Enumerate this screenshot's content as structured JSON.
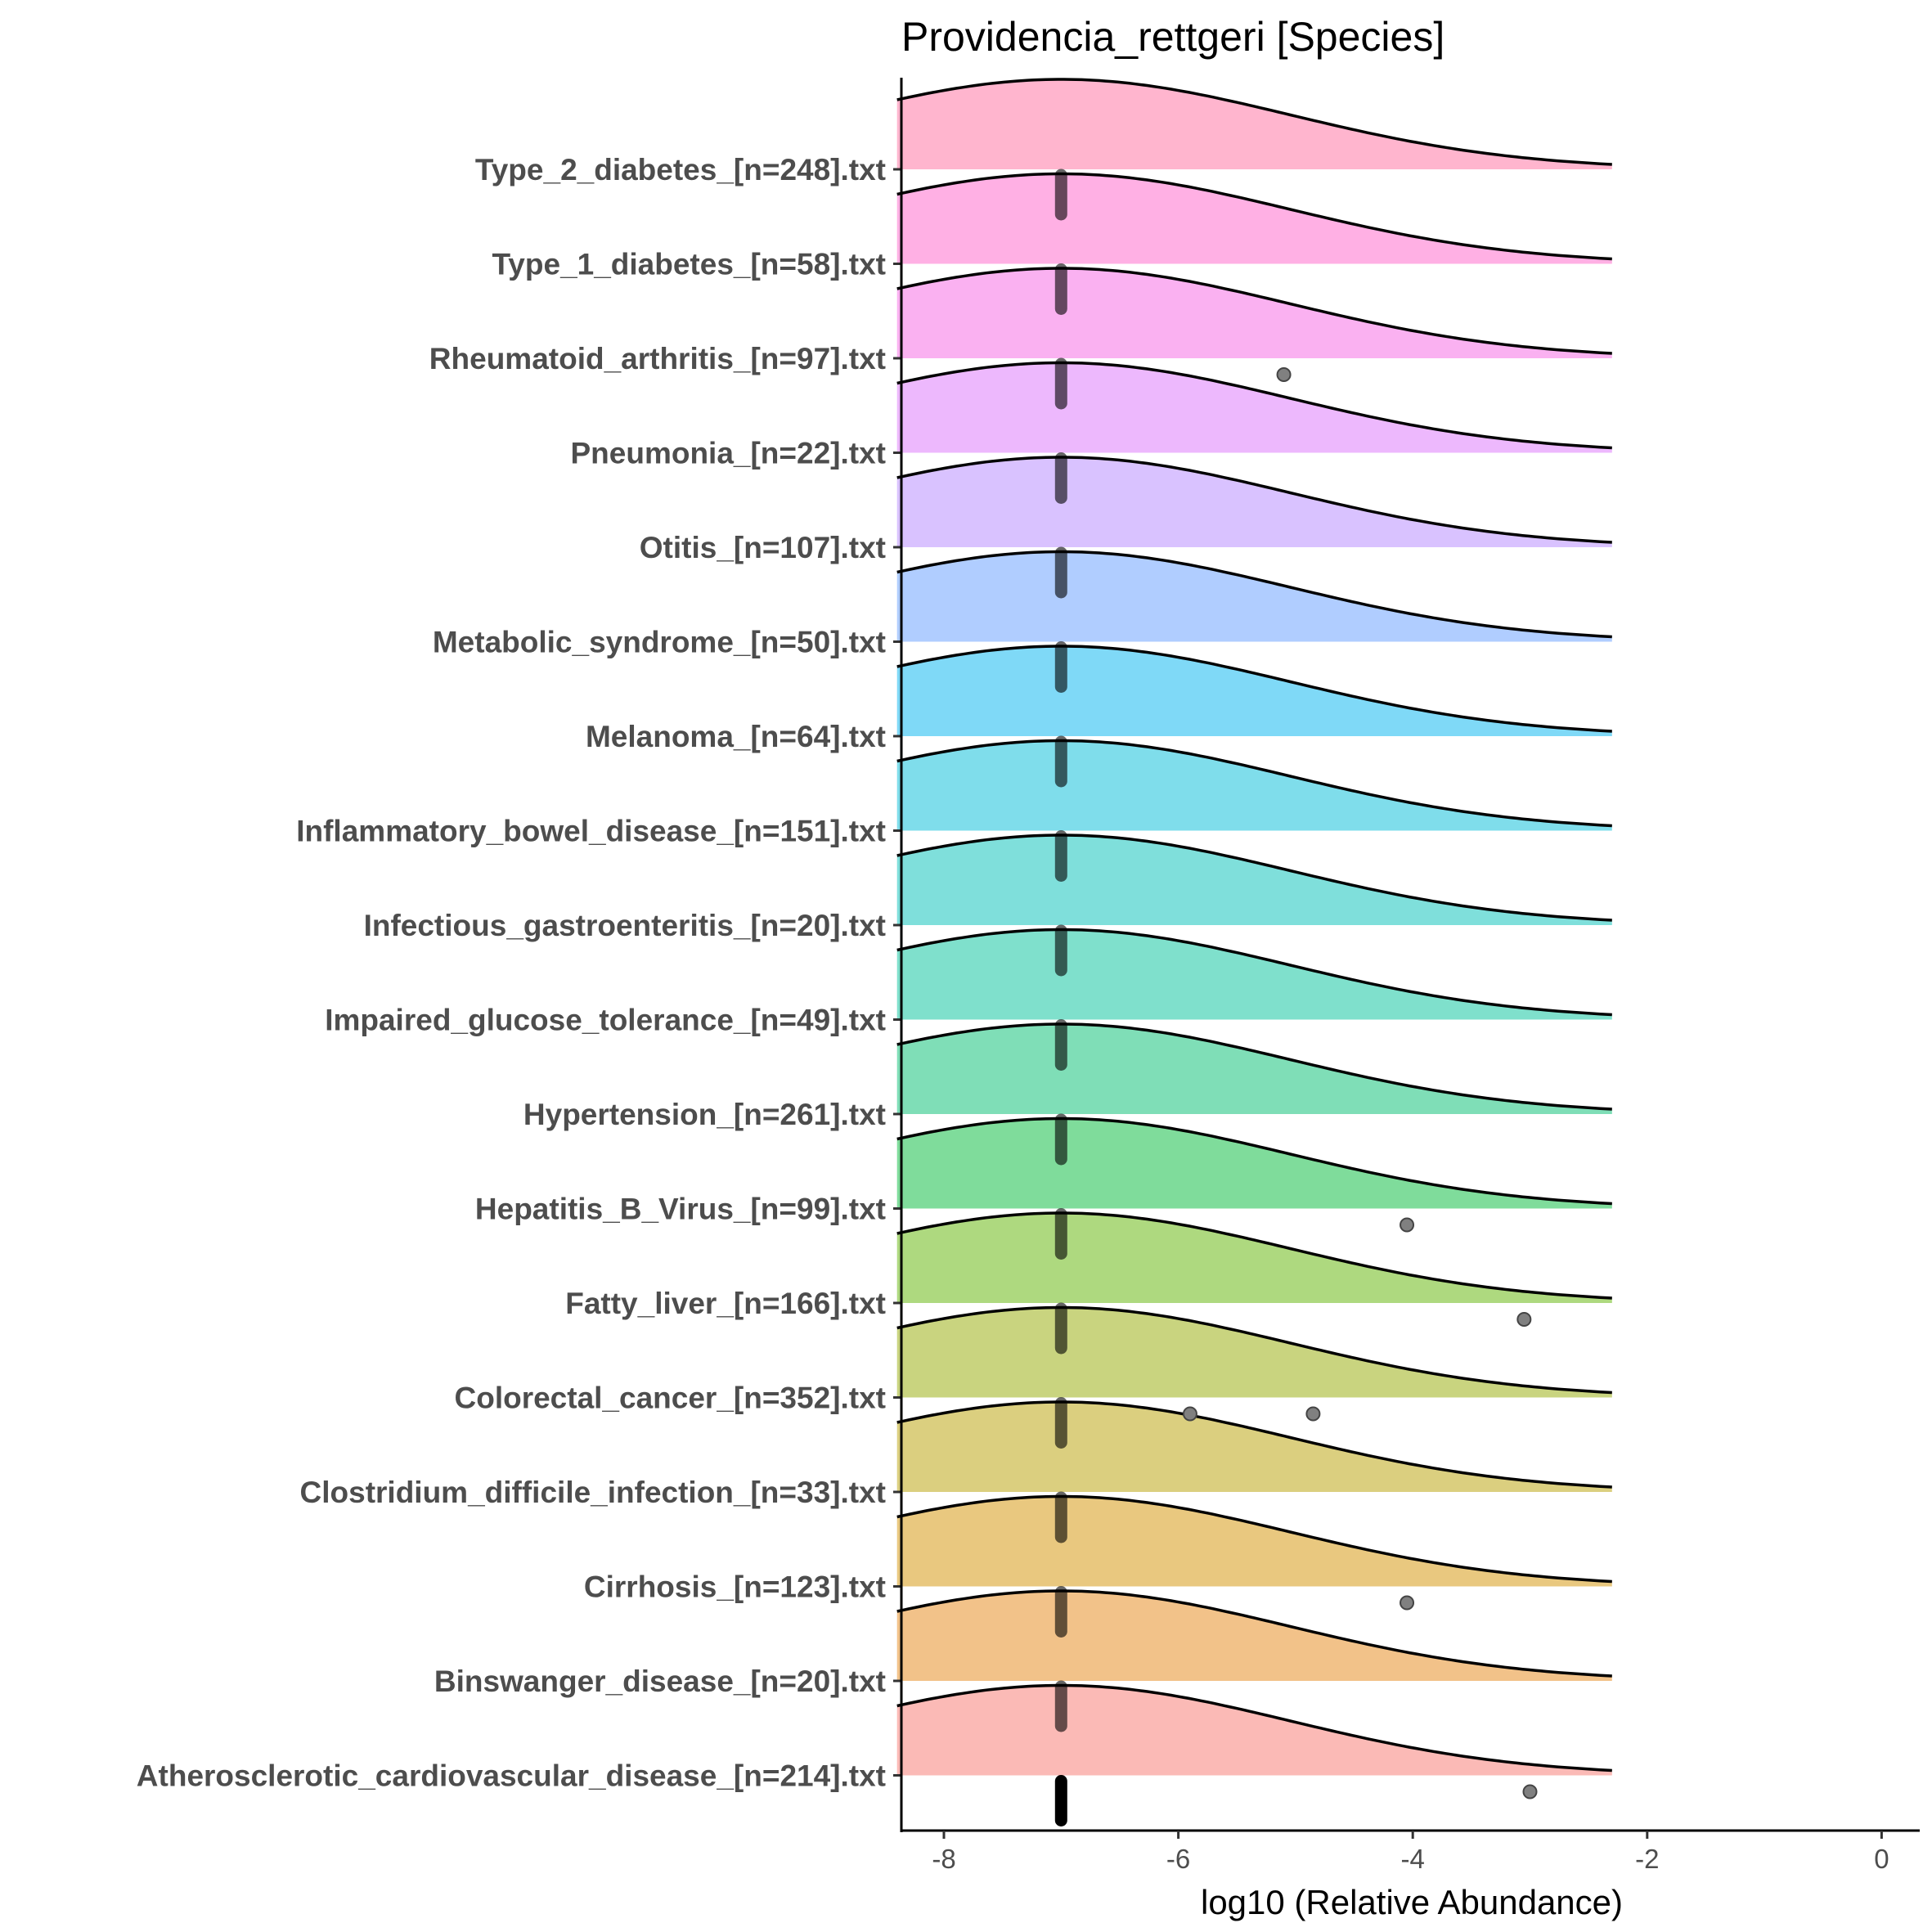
{
  "chart_data": {
    "type": "ridgeline",
    "title": "Providencia_rettgeri [Species]",
    "xlabel": "log10 (Relative Abundance)",
    "ylabel": "",
    "xlim": [
      -8.4,
      0.9
    ],
    "xticks": [
      -8,
      -6,
      -4,
      -2,
      0
    ],
    "xtick_labels": [
      "-8",
      "-6",
      "-4",
      "-2",
      "0"
    ],
    "categories_top_to_bottom": [
      "Type_2_diabetes_[n=248].txt",
      "Type_1_diabetes_[n=58].txt",
      "Rheumatoid_arthritis_[n=97].txt",
      "Pneumonia_[n=22].txt",
      "Otitis_[n=107].txt",
      "Metabolic_syndrome_[n=50].txt",
      "Melanoma_[n=64].txt",
      "Inflammatory_bowel_disease_[n=151].txt",
      "Infectious_gastroenteritis_[n=20].txt",
      "Impaired_glucose_tolerance_[n=49].txt",
      "Hypertension_[n=261].txt",
      "Hepatitis_B_Virus_[n=99].txt",
      "Fatty_liver_[n=166].txt",
      "Colorectal_cancer_[n=352].txt",
      "Clostridium_difficile_infection_[n=33].txt",
      "Cirrhosis_[n=123].txt",
      "Binswanger_disease_[n=20].txt",
      "Atherosclerotic_cardiovascular_disease_[n=214].txt"
    ],
    "colors_top_to_bottom": [
      "#FF6C9E",
      "#FF61C9",
      "#F564E3",
      "#DB72FB",
      "#B385FF",
      "#619CFF",
      "#00B4F0",
      "#00BCD8",
      "#00C0B8",
      "#00C19A",
      "#00BE70",
      "#00BA38",
      "#5EB300",
      "#93AA00",
      "#B79F00",
      "#D39200",
      "#E68613",
      "#F8766D"
    ],
    "density_peak_x": -7.0,
    "density_range": [
      -8.4,
      -2.3
    ],
    "point_cluster_x": -7.0,
    "outliers": [
      {
        "category": "Rheumatoid_arthritis_[n=97].txt",
        "x": -5.1
      },
      {
        "category": "Hepatitis_B_Virus_[n=99].txt",
        "x": -4.05
      },
      {
        "category": "Fatty_liver_[n=166].txt",
        "x": -3.05
      },
      {
        "category": "Colorectal_cancer_[n=352].txt",
        "x": -5.9
      },
      {
        "category": "Colorectal_cancer_[n=352].txt",
        "x": -4.85
      },
      {
        "category": "Cirrhosis_[n=123].txt",
        "x": -4.05
      },
      {
        "category": "Atherosclerotic_cardiovascular_disease_[n=214].txt",
        "x": -3.0
      }
    ]
  }
}
